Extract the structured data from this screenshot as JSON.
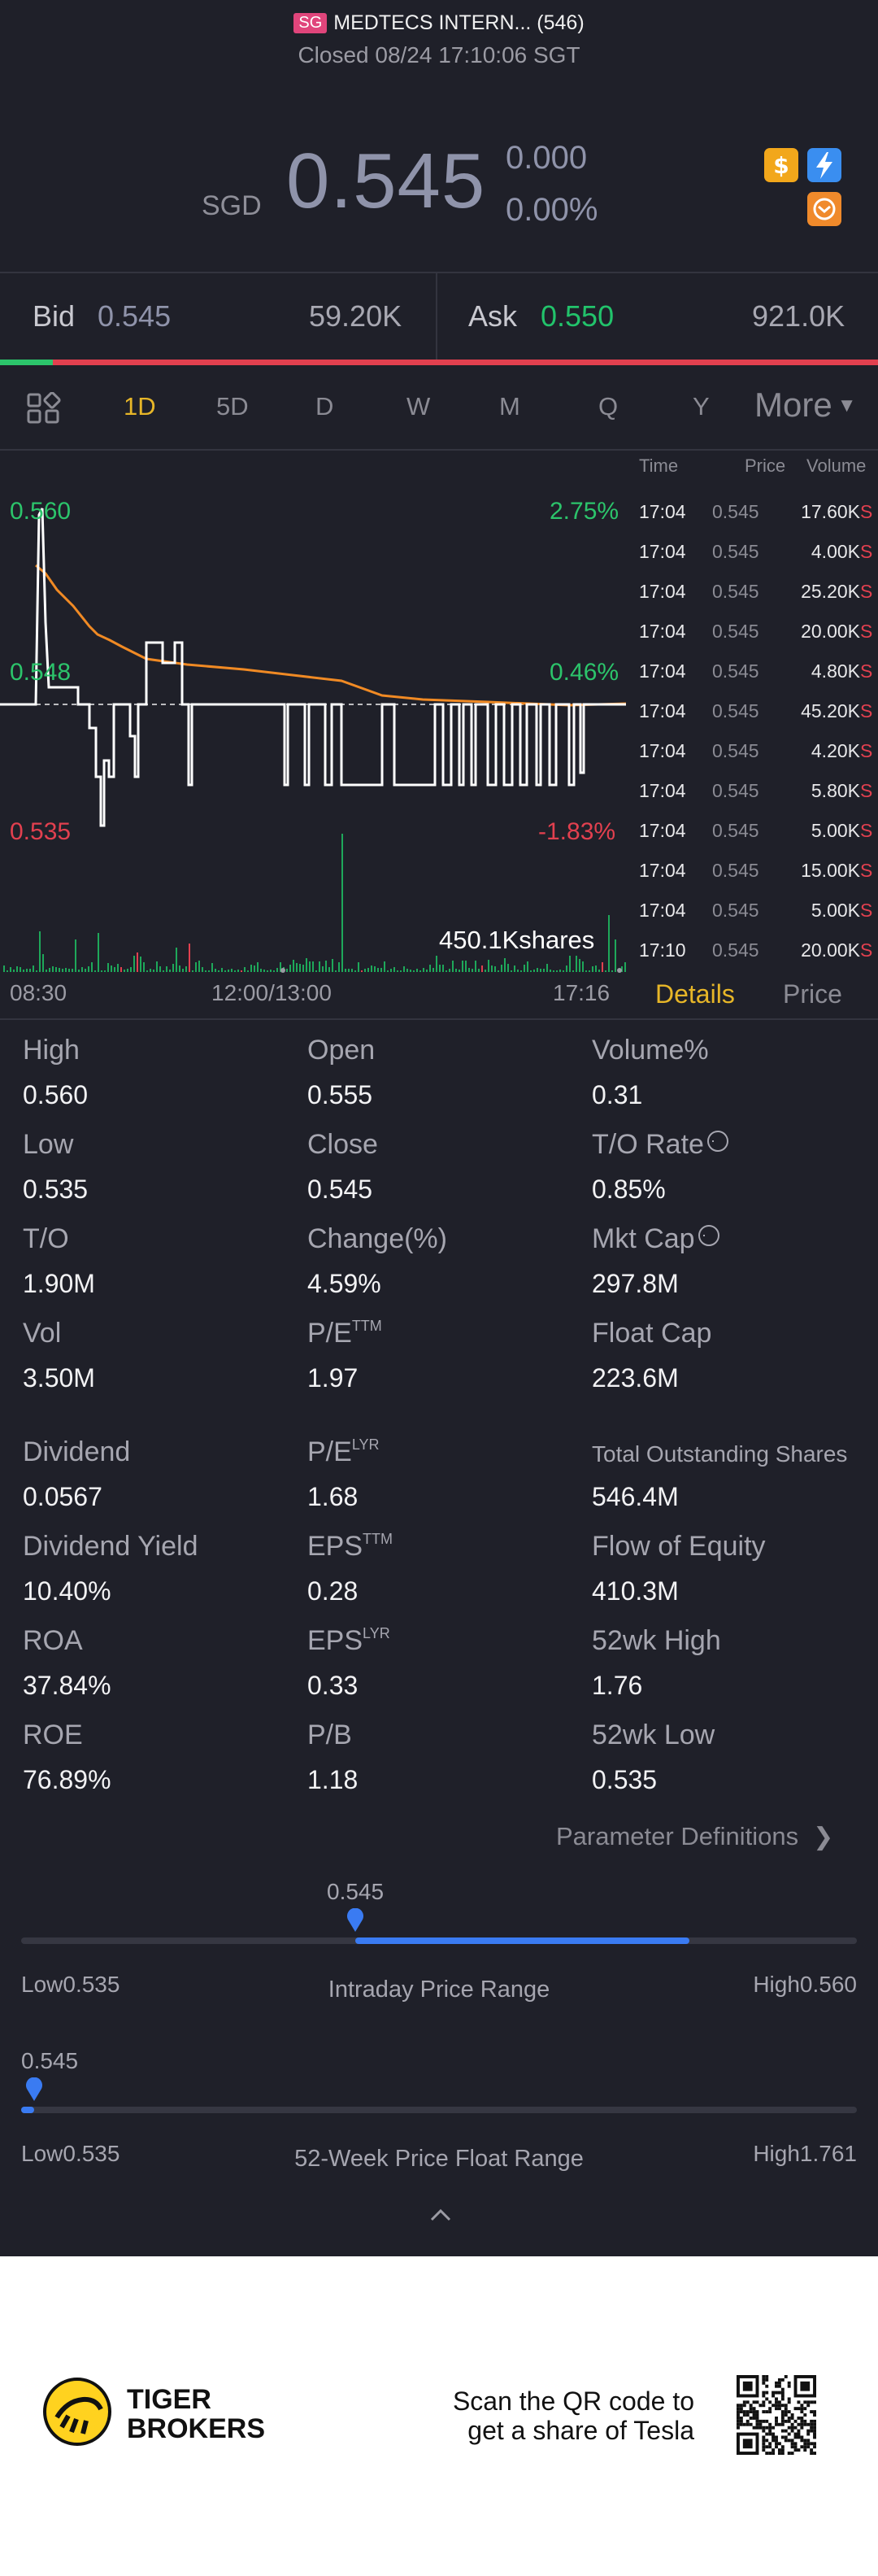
{
  "header": {
    "market_badge": "SG",
    "stock_name": "MEDTECS INTERN... (546)",
    "status": "Closed 08/24 17:10:06 SGT"
  },
  "quote": {
    "currency": "SGD",
    "price": "0.545",
    "change": "0.000",
    "change_pct": "0.00%"
  },
  "orderbook": {
    "bid_label": "Bid",
    "bid_price": "0.545",
    "bid_volume": "59.20K",
    "ask_label": "Ask",
    "ask_price": "0.550",
    "ask_volume": "921.0K",
    "bid_fraction": 0.06
  },
  "period_tabs": [
    "1D",
    "5D",
    "D",
    "W",
    "M",
    "Q",
    "Y"
  ],
  "active_tab": "1D",
  "more_label": "More",
  "chart": {
    "y_high": "0.560",
    "y_mid": "0.548",
    "y_low": "0.535",
    "pct_high": "2.75%",
    "pct_mid": "0.46%",
    "pct_low": "-1.83%",
    "volume_label": "450.1Kshares",
    "x_start": "08:30",
    "x_mid": "12:00/13:00",
    "x_end": "17:16"
  },
  "trades": {
    "headers": {
      "time": "Time",
      "price": "Price",
      "volume": "Volume"
    },
    "rows": [
      {
        "time": "17:04",
        "price": "0.545",
        "volume": "17.60K",
        "side": "S"
      },
      {
        "time": "17:04",
        "price": "0.545",
        "volume": "4.00K",
        "side": "S"
      },
      {
        "time": "17:04",
        "price": "0.545",
        "volume": "25.20K",
        "side": "S"
      },
      {
        "time": "17:04",
        "price": "0.545",
        "volume": "20.00K",
        "side": "S"
      },
      {
        "time": "17:04",
        "price": "0.545",
        "volume": "4.80K",
        "side": "S"
      },
      {
        "time": "17:04",
        "price": "0.545",
        "volume": "45.20K",
        "side": "S"
      },
      {
        "time": "17:04",
        "price": "0.545",
        "volume": "4.20K",
        "side": "S"
      },
      {
        "time": "17:04",
        "price": "0.545",
        "volume": "5.80K",
        "side": "S"
      },
      {
        "time": "17:04",
        "price": "0.545",
        "volume": "5.00K",
        "side": "S"
      },
      {
        "time": "17:04",
        "price": "0.545",
        "volume": "15.00K",
        "side": "S"
      },
      {
        "time": "17:04",
        "price": "0.545",
        "volume": "5.00K",
        "side": "S"
      },
      {
        "time": "17:10",
        "price": "0.545",
        "volume": "20.00K",
        "side": "S"
      }
    ]
  },
  "sub_tabs": {
    "details": "Details",
    "price": "Price"
  },
  "stats": {
    "high": {
      "label": "High",
      "value": "0.560"
    },
    "open": {
      "label": "Open",
      "value": "0.555"
    },
    "volume_pct": {
      "label": "Volume%",
      "value": "0.31"
    },
    "low": {
      "label": "Low",
      "value": "0.535"
    },
    "close": {
      "label": "Close",
      "value": "0.545"
    },
    "to_rate": {
      "label": "T/O Rate",
      "value": "0.85%"
    },
    "to": {
      "label": "T/O",
      "value": "1.90M"
    },
    "change_pct": {
      "label": "Change(%)",
      "value": "4.59%"
    },
    "mkt_cap": {
      "label": "Mkt Cap",
      "value": "297.8M"
    },
    "vol": {
      "label": "Vol",
      "value": "3.50M"
    },
    "pe_ttm": {
      "label": "P/E",
      "sup": "TTM",
      "value": "1.97"
    },
    "float_cap": {
      "label": "Float Cap",
      "value": "223.6M"
    },
    "dividend": {
      "label": "Dividend",
      "value": "0.0567"
    },
    "pe_lyr": {
      "label": "P/E",
      "sup": "LYR",
      "value": "1.68"
    },
    "total_shares": {
      "label": "Total Outstanding Shares",
      "value": "546.4M"
    },
    "div_yield": {
      "label": "Dividend Yield",
      "value": "10.40%"
    },
    "eps_ttm": {
      "label": "EPS",
      "sup": "TTM",
      "value": "0.28"
    },
    "flow_equity": {
      "label": "Flow of Equity",
      "value": "410.3M"
    },
    "roa": {
      "label": "ROA",
      "value": "37.84%"
    },
    "eps_lyr": {
      "label": "EPS",
      "sup": "LYR",
      "value": "0.33"
    },
    "wk52_high": {
      "label": "52wk High",
      "value": "1.76"
    },
    "roe": {
      "label": "ROE",
      "value": "76.89%"
    },
    "pb": {
      "label": "P/B",
      "value": "1.18"
    },
    "wk52_low": {
      "label": "52wk Low",
      "value": "0.535"
    }
  },
  "param_link": "Parameter Definitions",
  "intraday": {
    "current": "0.545",
    "low_label": "Low",
    "low": "0.535",
    "high_label": "High",
    "high": "0.560",
    "title": "Intraday Price Range",
    "position": 0.4
  },
  "week52": {
    "current": "0.545",
    "low_label": "Low",
    "low": "0.535",
    "high_label": "High",
    "high": "1.761",
    "title": "52-Week Price Float Range",
    "position": 0.008
  },
  "footer": {
    "brand_line1": "TIGER",
    "brand_line2": "BROKERS",
    "qr_line1": "Scan the QR code to",
    "qr_line2": "get a share of Tesla"
  },
  "colors": {
    "background": "#1f2029",
    "green": "#2cc46b",
    "red": "#e2404f",
    "accent": "#e7b628",
    "blue": "#3a7bf2"
  }
}
